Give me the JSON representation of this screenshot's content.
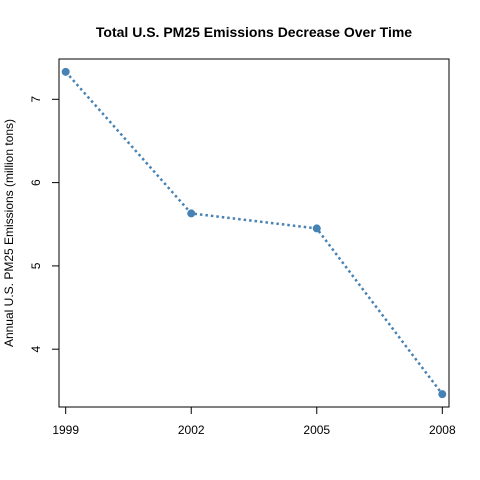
{
  "chart_data": {
    "type": "line",
    "title": "Total U.S. PM25 Emissions Decrease Over Time",
    "xlabel": "",
    "ylabel": "Annual U.S. PM25 Emissions (million tons)",
    "x": [
      1999,
      2002,
      2005,
      2008
    ],
    "series": [
      {
        "values": [
          7.33,
          5.63,
          5.45,
          3.46
        ]
      }
    ],
    "xticks": [
      "1999",
      "2002",
      "2005",
      "2008"
    ],
    "yticks": [
      "4",
      "5",
      "6",
      "7"
    ],
    "xlim": [
      1998.84,
      2008.16
    ],
    "ylim": [
      3.306,
      7.484
    ],
    "line_style": "dotted",
    "marker": "filled-circle",
    "color": "#4682B4",
    "grid": false,
    "legend": "none"
  }
}
